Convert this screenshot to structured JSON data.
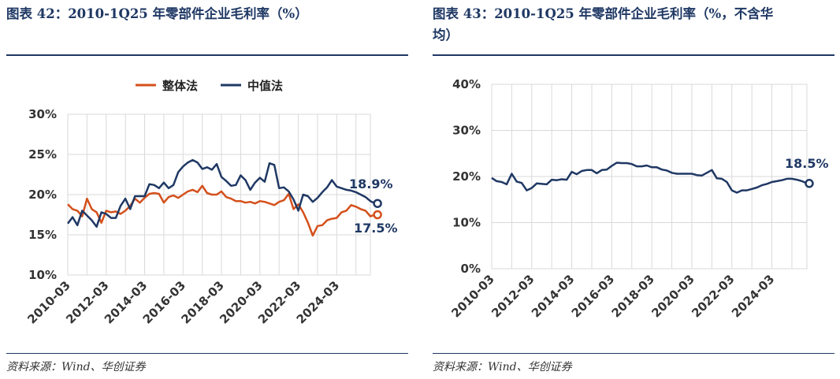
{
  "left": {
    "title": "图表 42：2010-1Q25 年零部件企业毛利率（%）",
    "source": "资料来源：Wind、华创证券"
  },
  "right": {
    "title_line1": "图表 43：2010-1Q25 年零部件企业毛利率（%，不含华",
    "title_line2": "均）",
    "source": "资料来源：Wind、华创证券"
  },
  "colors": {
    "series_a": "#d4501c",
    "series_b": "#1f3864",
    "grid": "#d9d9d9",
    "rule": "#1f3864"
  },
  "chart_data": [
    {
      "type": "line",
      "title": "",
      "xlabel": "",
      "ylabel": "",
      "ylim": [
        10,
        30
      ],
      "yticks": [
        "30%",
        "25%",
        "20%",
        "15%",
        "10%"
      ],
      "ytick_values": [
        30,
        25,
        20,
        15,
        10
      ],
      "xticks": [
        "2010-03",
        "2012-03",
        "2014-03",
        "2016-03",
        "2018-03",
        "2020-03",
        "2022-03",
        "2024-03"
      ],
      "grid": true,
      "legend": "top-center",
      "series": [
        {
          "name": "整体法",
          "values": [
            18.8,
            18.2,
            18.0,
            17.3,
            19.5,
            18.2,
            17.8,
            16.5,
            18.0,
            17.8,
            17.9,
            17.6,
            18.0,
            18.6,
            19.5,
            19.0,
            19.6,
            20.1,
            20.2,
            20.1,
            19.0,
            19.7,
            19.9,
            19.6,
            20.0,
            20.4,
            20.6,
            20.3,
            21.1,
            20.2,
            20.0,
            20.0,
            20.4,
            19.7,
            19.5,
            19.2,
            19.2,
            19.0,
            19.1,
            18.9,
            19.2,
            19.1,
            18.9,
            18.7,
            19.1,
            19.3,
            20.1,
            18.2,
            18.8,
            17.8,
            16.5,
            14.9,
            16.1,
            16.2,
            16.8,
            17.0,
            17.1,
            17.8,
            18.0,
            18.7,
            18.5,
            18.2,
            18.0,
            17.3,
            17.5
          ],
          "end_label": "17.5%"
        },
        {
          "name": "中值法",
          "values": [
            16.4,
            17.2,
            16.2,
            18.0,
            17.4,
            16.8,
            16.0,
            17.8,
            17.6,
            17.1,
            17.1,
            18.6,
            19.5,
            18.2,
            19.8,
            19.8,
            19.8,
            21.3,
            21.2,
            20.8,
            21.5,
            20.8,
            21.2,
            22.8,
            23.5,
            24.0,
            24.3,
            24.0,
            23.2,
            23.4,
            23.1,
            23.8,
            22.2,
            21.7,
            21.1,
            21.2,
            22.4,
            21.8,
            20.6,
            21.5,
            22.1,
            21.6,
            23.9,
            23.7,
            20.8,
            20.9,
            20.4,
            19.4,
            18.0,
            20.0,
            19.8,
            19.1,
            19.6,
            20.3,
            20.9,
            21.8,
            21.0,
            20.8,
            20.6,
            20.5,
            20.3,
            20.0,
            19.7,
            19.2,
            18.9
          ],
          "end_label": "18.9%"
        }
      ]
    },
    {
      "type": "line",
      "title": "",
      "xlabel": "",
      "ylabel": "",
      "ylim": [
        0,
        40
      ],
      "yticks": [
        "40%",
        "30%",
        "20%",
        "10%",
        "0%"
      ],
      "ytick_values": [
        40,
        30,
        20,
        10,
        0
      ],
      "xticks": [
        "2010-03",
        "2012-03",
        "2014-03",
        "2016-03",
        "2018-03",
        "2020-03",
        "2022-03",
        "2024-03"
      ],
      "grid": true,
      "series": [
        {
          "name": "",
          "values": [
            19.7,
            19.0,
            18.8,
            18.3,
            20.6,
            18.9,
            18.6,
            17.0,
            17.5,
            18.5,
            18.4,
            18.3,
            19.3,
            19.2,
            19.4,
            19.3,
            21.0,
            20.5,
            21.2,
            21.4,
            21.4,
            20.7,
            21.4,
            21.5,
            22.3,
            23.0,
            22.9,
            22.9,
            22.7,
            22.2,
            22.2,
            22.4,
            22.0,
            22.0,
            21.5,
            21.3,
            20.8,
            20.6,
            20.6,
            20.6,
            20.6,
            20.3,
            20.2,
            20.8,
            21.4,
            19.6,
            19.5,
            18.8,
            17.0,
            16.5,
            17.0,
            17.0,
            17.3,
            17.6,
            18.1,
            18.4,
            18.8,
            19.0,
            19.2,
            19.5,
            19.5,
            19.3,
            19.0,
            18.5
          ],
          "end_label": "18.5%"
        }
      ]
    }
  ]
}
